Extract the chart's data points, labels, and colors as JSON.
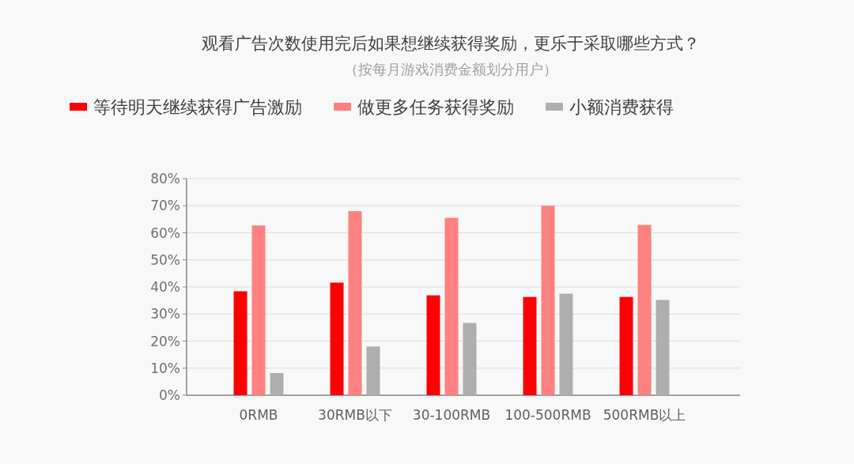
{
  "chart_data": {
    "type": "bar",
    "title": "观看广告次数使用完后如果想继续获得奖励，更乐于采取哪些方式？",
    "subtitle": "（按每月游戏消费金额划分用户）",
    "categories": [
      "0RMB",
      "30RMB以下",
      "30-100RMB",
      "100-500RMB",
      "500RMB以上"
    ],
    "series": [
      {
        "name": "等待明天继续获得广告激励",
        "color": "#ff0000",
        "values": [
          38.4,
          41.6,
          36.9,
          36.3,
          36.3
        ]
      },
      {
        "name": "做更多任务获得奖励",
        "color": "#ff8080",
        "values": [
          62.7,
          68.0,
          65.5,
          70.0,
          62.9
        ]
      },
      {
        "name": "小额消费获得",
        "color": "#aeaeae",
        "values": [
          8.2,
          18.0,
          26.7,
          37.5,
          35.2
        ]
      }
    ],
    "ylim": [
      0,
      80
    ],
    "yticks": [
      {
        "value": 0,
        "label": "0%"
      },
      {
        "value": 10,
        "label": "10%"
      },
      {
        "value": 20,
        "label": "20%"
      },
      {
        "value": 30,
        "label": "30%"
      },
      {
        "value": 40,
        "label": "40%"
      },
      {
        "value": 50,
        "label": "50%"
      },
      {
        "value": 60,
        "label": "60%"
      },
      {
        "value": 70,
        "label": "70%"
      },
      {
        "value": 80,
        "label": "80%"
      }
    ],
    "grid": "y",
    "legend": "top"
  }
}
